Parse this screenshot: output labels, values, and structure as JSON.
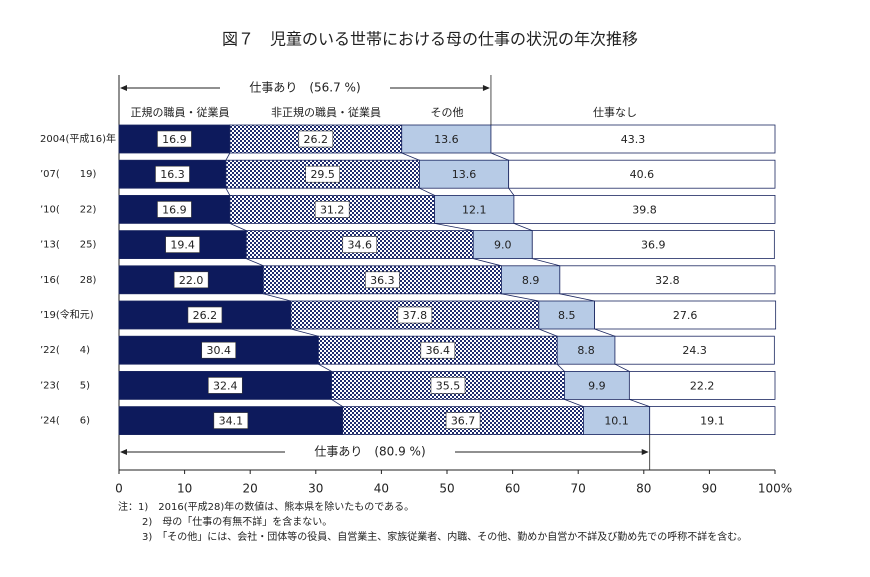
{
  "chart_data": {
    "type": "stacked-barh",
    "title": "図７　児童のいる世帯における母の仕事の状況の年次推移",
    "categories": [
      "2004(平成16)年",
      "’07(　　19)",
      "’10(　　22)",
      "’13(　　25)",
      "’16(　　28)",
      "’19(令和元)",
      "’22(　　4)",
      "’23(　　5)",
      "’24(　　6)"
    ],
    "series": [
      {
        "name": "正規の職員・従業員",
        "color": "#0d1a5c",
        "label_box": true,
        "values": [
          16.9,
          16.3,
          16.9,
          19.4,
          22.0,
          26.2,
          30.4,
          32.4,
          34.1
        ],
        "value_labels": [
          "16.9",
          "16.3",
          "16.9",
          "19.4",
          "22.0",
          "26.2",
          "30.4",
          "32.4",
          "34.1"
        ]
      },
      {
        "name": "非正規の職員・従業員",
        "color": "#1f2d6e",
        "pattern": "checker",
        "label_box": true,
        "values": [
          26.2,
          29.5,
          31.2,
          34.6,
          36.3,
          37.8,
          36.4,
          35.5,
          36.7
        ],
        "value_labels": [
          "26.2",
          "29.5",
          "31.2",
          "34.6",
          "36.3",
          "37.8",
          "36.4",
          "35.5",
          "36.7"
        ]
      },
      {
        "name": "その他",
        "color": "#b7cbe6",
        "label_box": false,
        "values": [
          13.6,
          13.6,
          12.1,
          9.0,
          8.9,
          8.5,
          8.8,
          9.9,
          10.1
        ],
        "value_labels": [
          "13.6",
          "13.6",
          "12.1",
          "9.0",
          "8.9",
          "8.5",
          "8.8",
          "9.9",
          "10.1"
        ]
      },
      {
        "name": "仕事なし",
        "color": "#ffffff",
        "label_box": false,
        "values": [
          43.3,
          40.6,
          39.8,
          36.9,
          32.8,
          27.6,
          24.3,
          22.2,
          19.1
        ],
        "value_labels": [
          "43.3",
          "40.6",
          "39.8",
          "36.9",
          "32.8",
          "27.6",
          "24.3",
          "22.2",
          "19.1"
        ]
      }
    ],
    "xlim": [
      0,
      100
    ],
    "xticks": [
      0,
      10,
      20,
      30,
      40,
      50,
      60,
      70,
      80,
      90,
      {
        "value": 100,
        "label": "100%"
      }
    ],
    "annotations": [
      {
        "text": "仕事あり　(56.7 %)",
        "value": 56.7,
        "position": "top"
      },
      {
        "text": "仕事あり　(80.9 %)",
        "value": 80.9,
        "position": "bottom"
      }
    ],
    "notes": [
      "注：1)　2016(平成28)年の数値は、熊本県を除いたものである。",
      "2)　母の「仕事の有無不詳」を含まない。",
      "3)　「その他」には、会社・団体等の役員、自営業主、家族従業者、内職、その他、勤めか自営か不詳及び勤め先での呼称不詳を含む。"
    ]
  }
}
